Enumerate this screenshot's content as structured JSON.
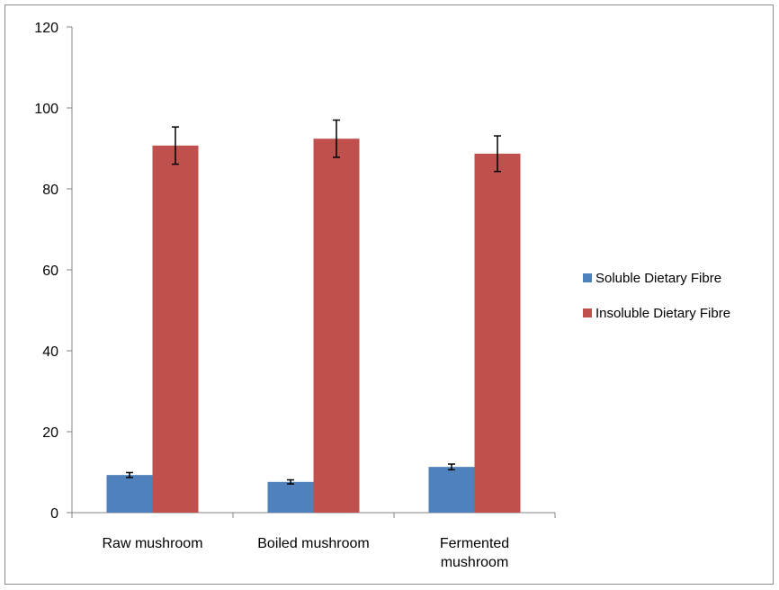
{
  "chart_data": {
    "type": "bar",
    "categories": [
      [
        "Raw mushroom"
      ],
      [
        "Boiled mushroom"
      ],
      [
        "Fermented",
        "mushroom"
      ]
    ],
    "series": [
      {
        "name": "Soluble Dietary Fibre",
        "color": "#4f81bd",
        "values": [
          9.3,
          7.6,
          11.3
        ],
        "errors": [
          0.6,
          0.5,
          0.7
        ]
      },
      {
        "name": "Insoluble Dietary Fibre",
        "color": "#c0504d",
        "values": [
          90.7,
          92.4,
          88.7
        ],
        "errors": [
          4.6,
          4.6,
          4.4
        ]
      }
    ],
    "ylim": [
      0,
      120
    ],
    "yticks": [
      0,
      20,
      40,
      60,
      80,
      100,
      120
    ],
    "legend_position": "right",
    "grid": false
  }
}
